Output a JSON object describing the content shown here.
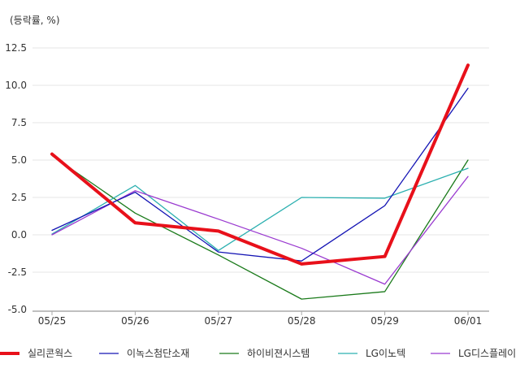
{
  "chart_data": {
    "type": "line",
    "unit_label": "(등락률, %)",
    "categories": [
      "05/25",
      "05/26",
      "05/27",
      "05/28",
      "05/29",
      "06/01"
    ],
    "ylim": [
      -5.0,
      12.5
    ],
    "yticks": [
      "12.5",
      "10.0",
      "7.5",
      "5.0",
      "2.5",
      "0.0",
      "-2.5",
      "-5.0"
    ],
    "ytick_values": [
      12.5,
      10.0,
      7.5,
      5.0,
      2.5,
      0.0,
      -2.5,
      -5.0
    ],
    "grid": true,
    "legend_position": "bottom",
    "series": [
      {
        "name": "실리콘웍스",
        "color": "#e8101a",
        "values": [
          5.4,
          0.8,
          0.25,
          -1.95,
          -1.45,
          11.35
        ]
      },
      {
        "name": "이녹스첨단소재",
        "color": "#1414b4",
        "values": [
          0.3,
          2.85,
          -1.15,
          -1.75,
          1.95,
          9.8
        ]
      },
      {
        "name": "하이비젼시스템",
        "color": "#1a7a1a",
        "values": [
          5.3,
          1.45,
          -1.35,
          -4.3,
          -3.8,
          5.0
        ]
      },
      {
        "name": "LG이노텍",
        "color": "#2cb0b0",
        "values": [
          0.05,
          3.3,
          -1.05,
          2.5,
          2.45,
          4.45
        ]
      },
      {
        "name": "LG디스플레이",
        "color": "#9a3ad0",
        "values": [
          0.0,
          2.95,
          1.05,
          -0.9,
          -3.3,
          3.9
        ]
      }
    ]
  }
}
